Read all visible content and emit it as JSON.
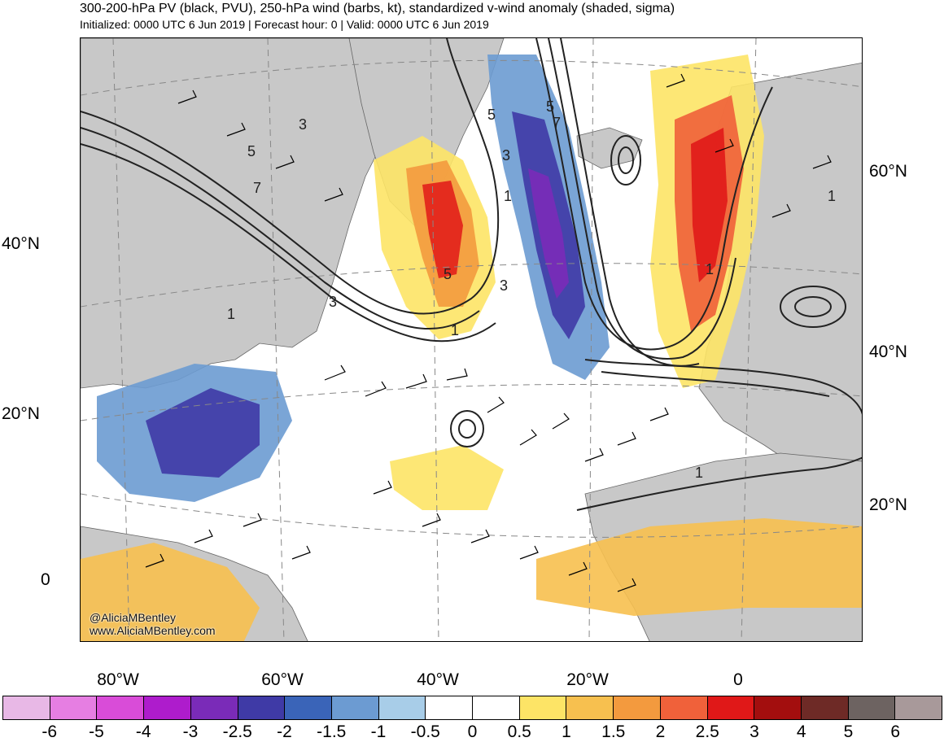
{
  "header": {
    "title": "300-200-hPa PV (black, PVU), 250-hPa wind (barbs, kt), standardized v-wind anomaly (shaded, sigma)",
    "subtitle": "Initialized: 0000 UTC 6 Jun 2019 | Forecast hour: 0 | Valid: 0000 UTC 6 Jun 2019"
  },
  "map": {
    "lat_labels_left": [
      "40°N",
      "20°N",
      "0"
    ],
    "lat_labels_right": [
      "60°N",
      "40°N",
      "20°N"
    ],
    "lon_labels": [
      "80°W",
      "60°W",
      "40°W",
      "20°W",
      "0"
    ],
    "contour_labels": [
      "3",
      "5",
      "7",
      "5",
      "3",
      "1",
      "3",
      "5",
      "1",
      "5",
      "7",
      "3",
      "1",
      "1",
      "1",
      "1"
    ],
    "watermark_handle": "@AliciaMBentley",
    "watermark_url": "www.AliciaMBentley.com"
  },
  "colorbar": {
    "labels": [
      "-6",
      "-5",
      "-4",
      "-3",
      "-2.5",
      "-2",
      "-1.5",
      "-1",
      "-0.5",
      "0",
      "0.5",
      "1",
      "1.5",
      "2",
      "2.5",
      "3",
      "4",
      "5",
      "6"
    ],
    "colors": [
      "#e8b8e6",
      "#e67ee2",
      "#d94cd8",
      "#ae1ccc",
      "#7a2bb8",
      "#3f3aa6",
      "#3a64b8",
      "#6c9bd2",
      "#a8cde8",
      "#ffffff",
      "#ffffff",
      "#fde466",
      "#f7c04f",
      "#f39a3e",
      "#f0613a",
      "#e01818",
      "#a30e0e",
      "#6e2a26",
      "#6d6361",
      "#a8999a"
    ]
  }
}
